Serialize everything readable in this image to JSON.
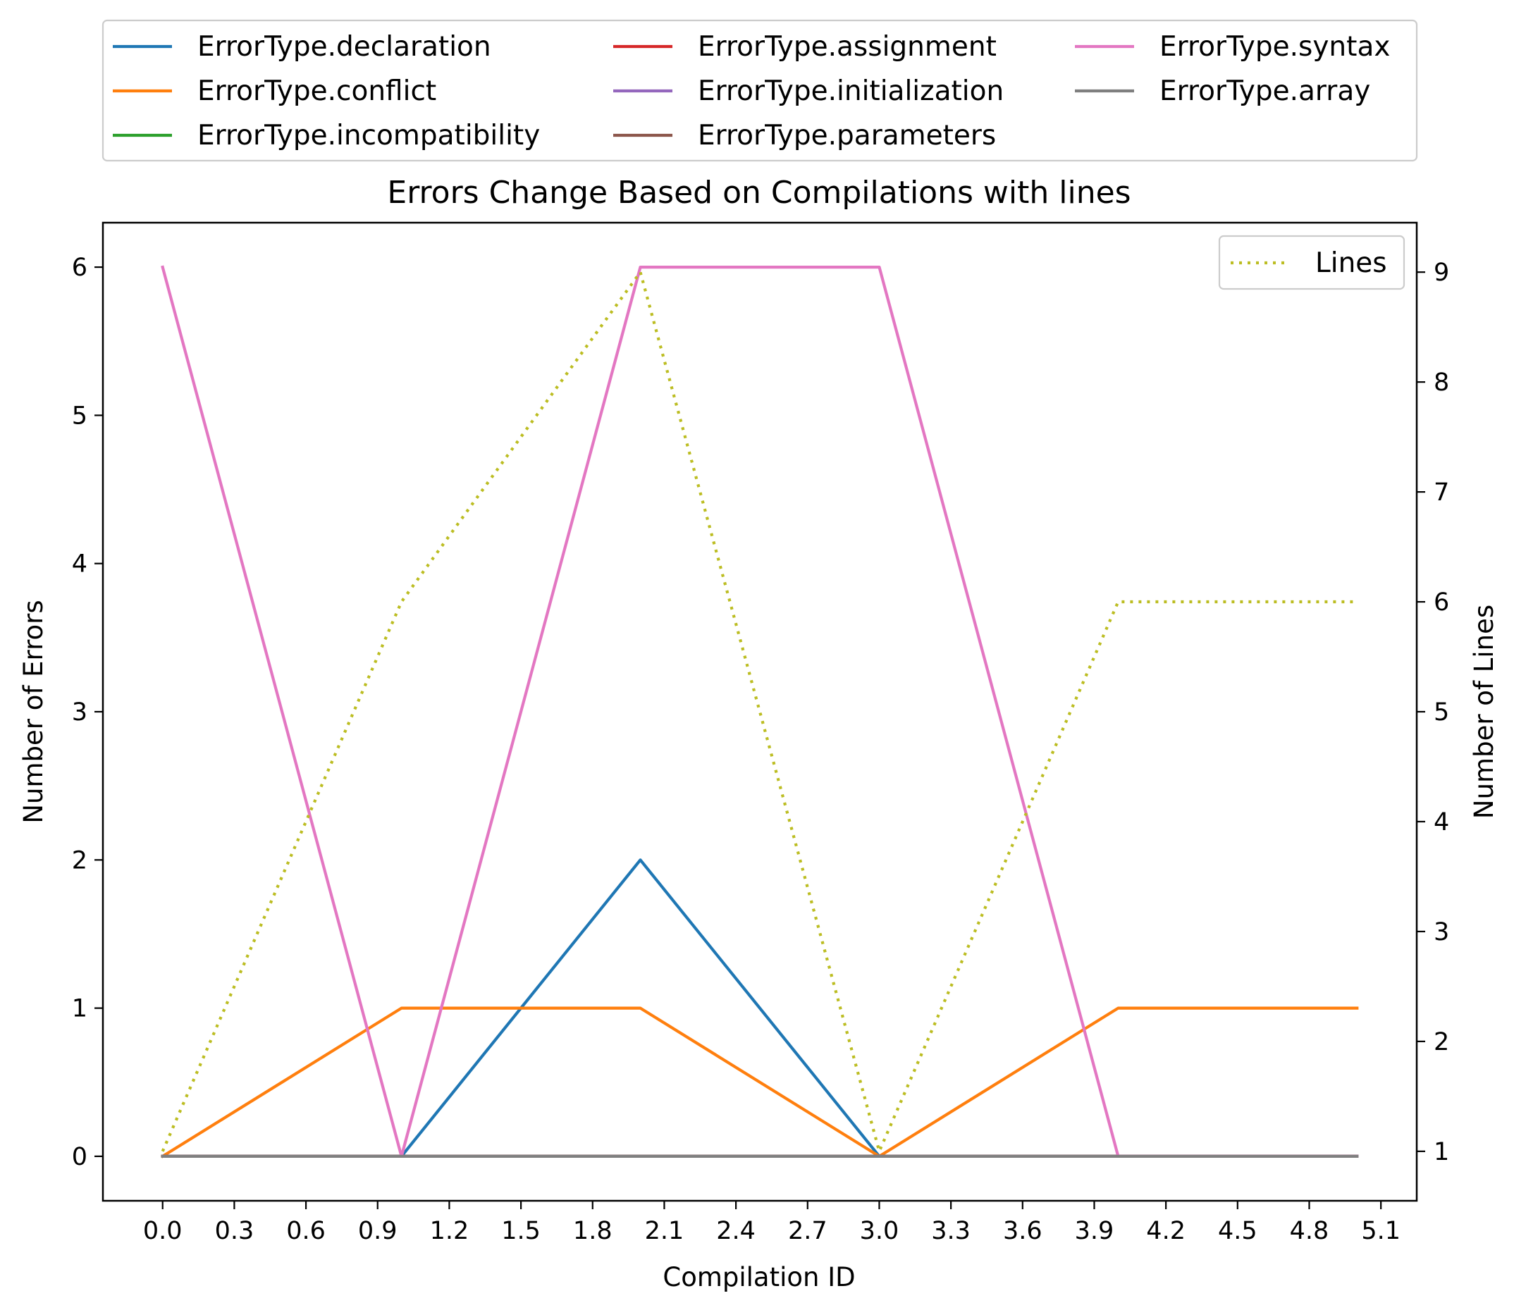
{
  "chart_data": {
    "type": "line",
    "title": "Errors Change Based on Compilations with lines",
    "xlabel": "Compilation ID",
    "ylabel": "Number of Errors",
    "y2label": "Number of Lines",
    "x": [
      0,
      1,
      2,
      3,
      4,
      5
    ],
    "xlim": [
      -0.25,
      5.25
    ],
    "ylim": [
      -0.3,
      6.3
    ],
    "y2lim": [
      0.55,
      9.45
    ],
    "xticks": [
      "0.0",
      "0.3",
      "0.6",
      "0.9",
      "1.2",
      "1.5",
      "1.8",
      "2.1",
      "2.4",
      "2.7",
      "3.0",
      "3.3",
      "3.6",
      "3.9",
      "4.2",
      "4.5",
      "4.8",
      "5.1"
    ],
    "yticks": [
      "0",
      "1",
      "2",
      "3",
      "4",
      "5",
      "6"
    ],
    "y2ticks": [
      "1",
      "2",
      "3",
      "4",
      "5",
      "6",
      "7",
      "8",
      "9"
    ],
    "series": [
      {
        "name": "ErrorType.declaration",
        "color": "#1f77b4",
        "values": [
          0,
          0,
          2,
          0,
          0,
          0
        ]
      },
      {
        "name": "ErrorType.conflict",
        "color": "#ff7f0e",
        "values": [
          0,
          1,
          1,
          0,
          1,
          1
        ]
      },
      {
        "name": "ErrorType.incompatibility",
        "color": "#2ca02c",
        "values": [
          0,
          0,
          0,
          0,
          0,
          0
        ]
      },
      {
        "name": "ErrorType.assignment",
        "color": "#d62728",
        "values": [
          0,
          0,
          0,
          0,
          0,
          0
        ]
      },
      {
        "name": "ErrorType.initialization",
        "color": "#9467bd",
        "values": [
          0,
          0,
          0,
          0,
          0,
          0
        ]
      },
      {
        "name": "ErrorType.parameters",
        "color": "#8c564b",
        "values": [
          0,
          0,
          0,
          0,
          0,
          0
        ]
      },
      {
        "name": "ErrorType.syntax",
        "color": "#e377c2",
        "values": [
          6,
          0,
          6,
          6,
          0,
          0
        ]
      },
      {
        "name": "ErrorType.array",
        "color": "#7f7f7f",
        "values": [
          0,
          0,
          0,
          0,
          0,
          0
        ]
      }
    ],
    "secondary_series": {
      "name": "Lines",
      "color": "#bcbd22",
      "style": "dotted",
      "values": [
        1,
        6,
        9,
        1,
        6,
        6
      ]
    },
    "legend_placement": "above plot, 3 columns",
    "secondary_legend_placement": "top-right",
    "grid": false
  }
}
